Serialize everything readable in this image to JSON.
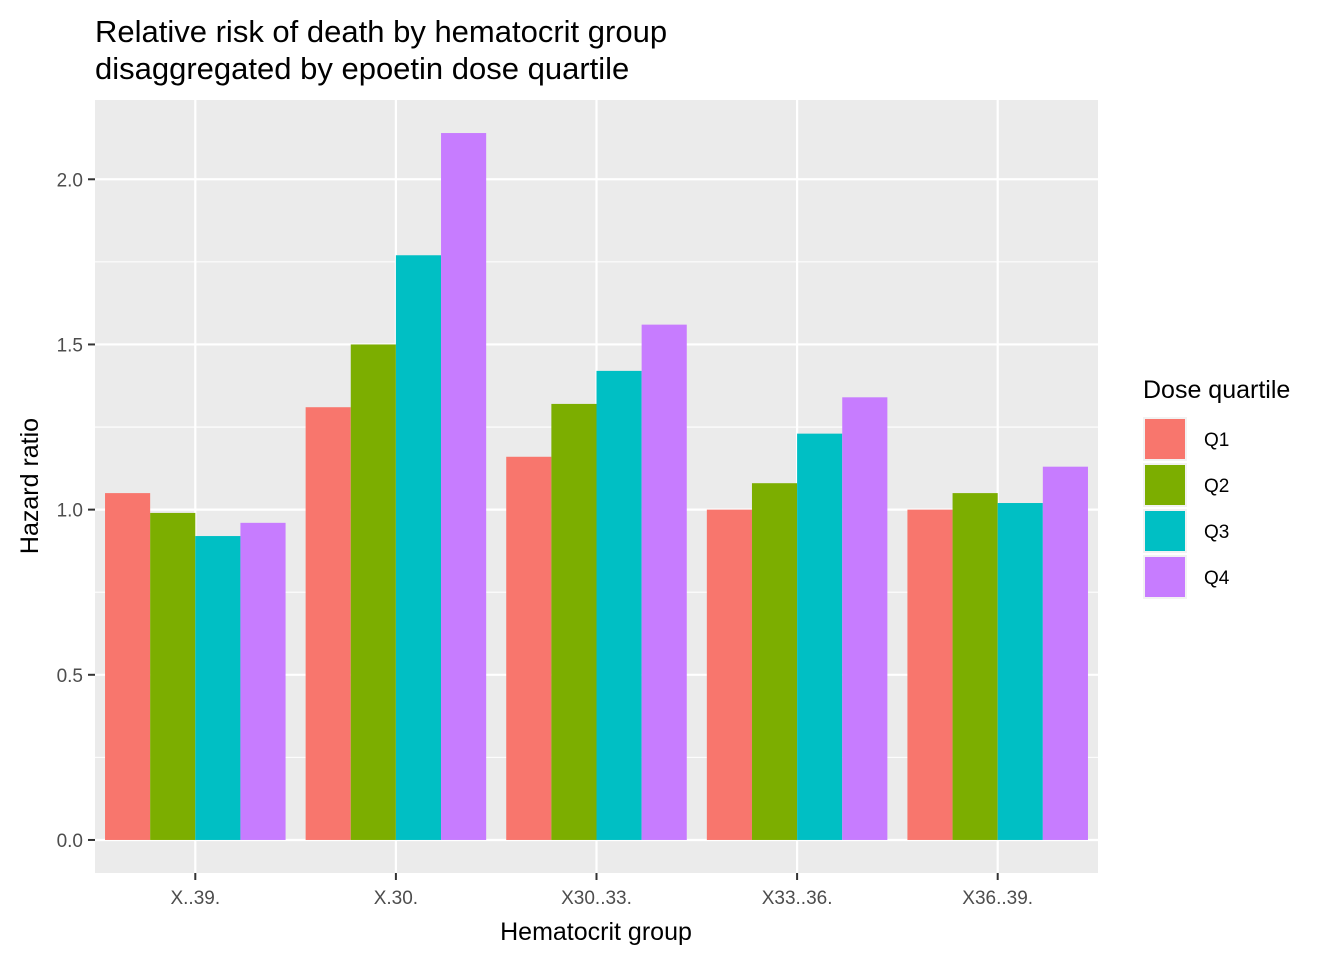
{
  "chart_data": {
    "type": "bar",
    "title_lines": [
      "Relative risk of death by hematocrit group",
      "disaggregated by epoetin dose quartile"
    ],
    "xlabel": "Hematocrit group",
    "ylabel": "Hazard ratio",
    "categories": [
      "X..39.",
      "X.30.",
      "X30..33.",
      "X33..36.",
      "X36..39."
    ],
    "ylim": [
      -0.1,
      2.24
    ],
    "yticks": [
      0.0,
      0.5,
      1.0,
      1.5,
      2.0
    ],
    "ytick_labels": [
      "0.0",
      "0.5",
      "1.0",
      "1.5",
      "2.0"
    ],
    "grid": true,
    "legend": {
      "title": "Dose quartile",
      "placement": "right"
    },
    "series": [
      {
        "name": "Q1",
        "color": "#F8766D",
        "values": [
          1.05,
          1.31,
          1.16,
          1.0,
          1.0
        ]
      },
      {
        "name": "Q2",
        "color": "#7CAE00",
        "values": [
          0.99,
          1.5,
          1.32,
          1.08,
          1.05
        ]
      },
      {
        "name": "Q3",
        "color": "#00BFC4",
        "values": [
          0.92,
          1.77,
          1.42,
          1.23,
          1.02
        ]
      },
      {
        "name": "Q4",
        "color": "#C77CFF",
        "values": [
          0.96,
          2.14,
          1.56,
          1.34,
          1.13
        ]
      }
    ]
  }
}
